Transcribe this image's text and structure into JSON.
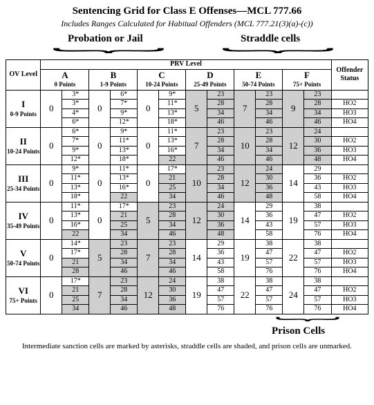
{
  "title": "Sentencing Grid for Class E Offenses—MCL 777.66",
  "subtitle": "Includes Ranges Calculated for Habitual Offenders (MCL 777.21(3)(a)-(c))",
  "top_labels": {
    "left": "Probation or Jail",
    "right": "Straddle cells"
  },
  "bottom_label": "Prison Cells",
  "footnote": "Intermediate sanction cells are marked by asterisks, straddle cells are shaded, and prison cells are unmarked.",
  "headers": {
    "ov": "OV Level",
    "prv": "PRV Level",
    "offstat": "Offender Status",
    "cols": [
      {
        "letter": "A",
        "pts": "0 Points"
      },
      {
        "letter": "B",
        "pts": "1-9 Points"
      },
      {
        "letter": "C",
        "pts": "10-24 Points"
      },
      {
        "letter": "D",
        "pts": "25-49 Points"
      },
      {
        "letter": "E",
        "pts": "50-74 Points"
      },
      {
        "letter": "F",
        "pts": "75+ Points"
      }
    ]
  },
  "status": [
    "",
    "HO2",
    "HO3",
    "HO4"
  ],
  "rows": [
    {
      "roman": "I",
      "pts": "0-9 Points",
      "cells": [
        {
          "min": "0",
          "max": [
            "3*",
            "3*",
            "4*",
            "6*"
          ],
          "shade": [
            0,
            0,
            0,
            0
          ]
        },
        {
          "min": "0",
          "max": [
            "6*",
            "7*",
            "9*",
            "12*"
          ],
          "shade": [
            0,
            0,
            0,
            0
          ]
        },
        {
          "min": "0",
          "max": [
            "9*",
            "11*",
            "13*",
            "18*"
          ],
          "shade": [
            0,
            0,
            0,
            0
          ]
        },
        {
          "min": "5",
          "max": [
            "23",
            "28",
            "34",
            "46"
          ],
          "minshade": 1,
          "shade": [
            1,
            1,
            1,
            1
          ]
        },
        {
          "min": "7",
          "max": [
            "23",
            "28",
            "34",
            "46"
          ],
          "minshade": 1,
          "shade": [
            1,
            1,
            1,
            1
          ]
        },
        {
          "min": "9",
          "max": [
            "23",
            "28",
            "34",
            "46"
          ],
          "minshade": 1,
          "shade": [
            1,
            1,
            1,
            1
          ]
        }
      ]
    },
    {
      "roman": "II",
      "pts": "10-24 Points",
      "cells": [
        {
          "min": "0",
          "max": [
            "6*",
            "7*",
            "9*",
            "12*"
          ],
          "shade": [
            0,
            0,
            0,
            0
          ]
        },
        {
          "min": "0",
          "max": [
            "9*",
            "11*",
            "13*",
            "18*"
          ],
          "shade": [
            0,
            0,
            0,
            0
          ]
        },
        {
          "min": "0",
          "max": [
            "11*",
            "13*",
            "16*",
            "22"
          ],
          "shade": [
            0,
            0,
            0,
            1
          ]
        },
        {
          "min": "7",
          "max": [
            "23",
            "28",
            "34",
            "46"
          ],
          "minshade": 1,
          "shade": [
            1,
            1,
            1,
            1
          ]
        },
        {
          "min": "10",
          "max": [
            "23",
            "28",
            "34",
            "46"
          ],
          "minshade": 1,
          "shade": [
            1,
            1,
            1,
            1
          ]
        },
        {
          "min": "12",
          "max": [
            "24",
            "30",
            "36",
            "48"
          ],
          "minshade": 1,
          "shade": [
            1,
            1,
            1,
            1
          ]
        }
      ]
    },
    {
      "roman": "III",
      "pts": "25-34 Points",
      "cells": [
        {
          "min": "0",
          "max": [
            "9*",
            "11*",
            "13*",
            "18*"
          ],
          "shade": [
            0,
            0,
            0,
            0
          ]
        },
        {
          "min": "0",
          "max": [
            "11*",
            "13*",
            "16*",
            "22"
          ],
          "shade": [
            0,
            0,
            0,
            1
          ]
        },
        {
          "min": "0",
          "max": [
            "17*",
            "21",
            "25",
            "34"
          ],
          "shade": [
            0,
            1,
            1,
            1
          ]
        },
        {
          "min": "10",
          "max": [
            "23",
            "28",
            "34",
            "46"
          ],
          "minshade": 1,
          "shade": [
            1,
            1,
            1,
            1
          ]
        },
        {
          "min": "12",
          "max": [
            "24",
            "30",
            "36",
            "48"
          ],
          "minshade": 1,
          "shade": [
            1,
            1,
            1,
            1
          ]
        },
        {
          "min": "14",
          "max": [
            "29",
            "36",
            "43",
            "58"
          ],
          "shade": [
            0,
            0,
            0,
            0
          ]
        }
      ]
    },
    {
      "roman": "IV",
      "pts": "35-49 Points",
      "cells": [
        {
          "min": "0",
          "max": [
            "11*",
            "13*",
            "16*",
            "22"
          ],
          "shade": [
            0,
            0,
            0,
            1
          ]
        },
        {
          "min": "0",
          "max": [
            "17*",
            "21",
            "25",
            "34"
          ],
          "shade": [
            0,
            1,
            1,
            1
          ]
        },
        {
          "min": "5",
          "max": [
            "23",
            "28",
            "34",
            "46"
          ],
          "minshade": 1,
          "shade": [
            1,
            1,
            1,
            1
          ]
        },
        {
          "min": "12",
          "max": [
            "24",
            "30",
            "36",
            "48"
          ],
          "minshade": 1,
          "shade": [
            1,
            1,
            1,
            1
          ]
        },
        {
          "min": "14",
          "max": [
            "29",
            "36",
            "43",
            "58"
          ],
          "shade": [
            0,
            0,
            0,
            0
          ]
        },
        {
          "min": "19",
          "max": [
            "38",
            "47",
            "57",
            "76"
          ],
          "shade": [
            0,
            0,
            0,
            0
          ]
        }
      ]
    },
    {
      "roman": "V",
      "pts": "50-74 Points",
      "cells": [
        {
          "min": "0",
          "max": [
            "14*",
            "17*",
            "21",
            "28"
          ],
          "shade": [
            0,
            0,
            1,
            1
          ]
        },
        {
          "min": "5",
          "max": [
            "23",
            "28",
            "34",
            "46"
          ],
          "minshade": 1,
          "shade": [
            1,
            1,
            1,
            1
          ]
        },
        {
          "min": "7",
          "max": [
            "23",
            "28",
            "34",
            "46"
          ],
          "minshade": 1,
          "shade": [
            1,
            1,
            1,
            1
          ]
        },
        {
          "min": "14",
          "max": [
            "29",
            "36",
            "43",
            "58"
          ],
          "shade": [
            0,
            0,
            0,
            0
          ]
        },
        {
          "min": "19",
          "max": [
            "38",
            "47",
            "57",
            "76"
          ],
          "shade": [
            0,
            0,
            0,
            0
          ]
        },
        {
          "min": "22",
          "max": [
            "38",
            "47",
            "57",
            "76"
          ],
          "shade": [
            0,
            0,
            0,
            0
          ]
        }
      ]
    },
    {
      "roman": "VI",
      "pts": "75+ Points",
      "cells": [
        {
          "min": "0",
          "max": [
            "17*",
            "21",
            "25",
            "34"
          ],
          "shade": [
            0,
            1,
            1,
            1
          ]
        },
        {
          "min": "7",
          "max": [
            "23",
            "28",
            "34",
            "46"
          ],
          "minshade": 1,
          "shade": [
            1,
            1,
            1,
            1
          ]
        },
        {
          "min": "12",
          "max": [
            "24",
            "30",
            "36",
            "48"
          ],
          "minshade": 1,
          "shade": [
            1,
            1,
            1,
            1
          ]
        },
        {
          "min": "19",
          "max": [
            "38",
            "47",
            "57",
            "76"
          ],
          "shade": [
            0,
            0,
            0,
            0
          ]
        },
        {
          "min": "22",
          "max": [
            "38",
            "47",
            "57",
            "76"
          ],
          "shade": [
            0,
            0,
            0,
            0
          ]
        },
        {
          "min": "24",
          "max": [
            "38",
            "47",
            "57",
            "76"
          ],
          "shade": [
            0,
            0,
            0,
            0
          ]
        }
      ]
    }
  ],
  "colors": {
    "shade": "#cfcfcf",
    "border": "#000000",
    "bg": "#ffffff"
  }
}
